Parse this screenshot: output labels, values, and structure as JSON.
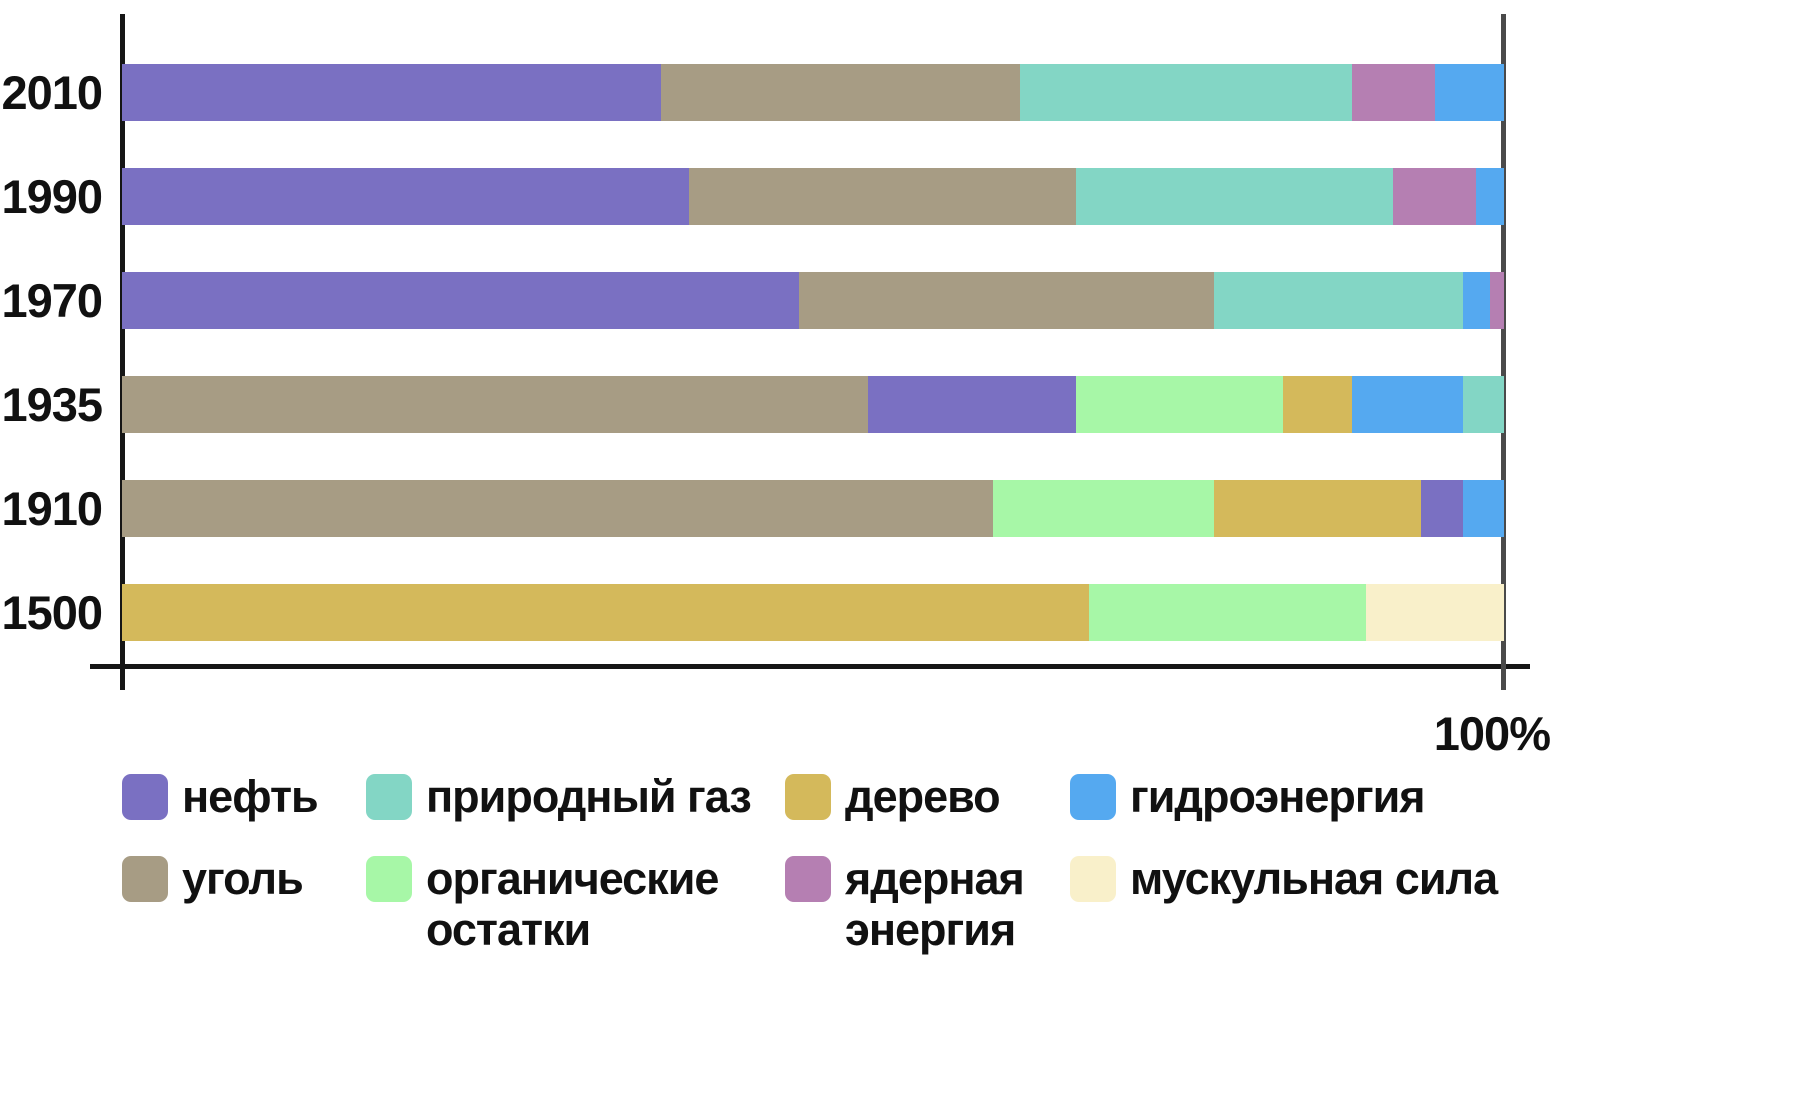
{
  "axis": {
    "max_label": "100%"
  },
  "colors": {
    "oil": "#7a70c2",
    "coal": "#a79c84",
    "gas": "#83d6c5",
    "organic": "#a7f7a7",
    "wood": "#d4b95b",
    "nuclear": "#b57fb2",
    "hydro": "#55a9f0",
    "muscle": "#f9f0ca"
  },
  "chart_data": {
    "type": "bar",
    "orientation": "horizontal",
    "stacked": true,
    "unit": "%",
    "xlim": [
      0,
      100
    ],
    "categories": [
      "2010",
      "1990",
      "1970",
      "1935",
      "1910",
      "1500"
    ],
    "rows": [
      {
        "year": "2010",
        "segments": [
          {
            "name": "нефть",
            "key": "oil",
            "value": 39
          },
          {
            "name": "уголь",
            "key": "coal",
            "value": 26
          },
          {
            "name": "природный газ",
            "key": "gas",
            "value": 24
          },
          {
            "name": "ядерная энергия",
            "key": "nuclear",
            "value": 6
          },
          {
            "name": "гидроэнергия",
            "key": "hydro",
            "value": 5
          }
        ]
      },
      {
        "year": "1990",
        "segments": [
          {
            "name": "нефть",
            "key": "oil",
            "value": 41
          },
          {
            "name": "уголь",
            "key": "coal",
            "value": 28
          },
          {
            "name": "природный газ",
            "key": "gas",
            "value": 23
          },
          {
            "name": "ядерная энергия",
            "key": "nuclear",
            "value": 6
          },
          {
            "name": "гидроэнергия",
            "key": "hydro",
            "value": 2
          }
        ]
      },
      {
        "year": "1970",
        "segments": [
          {
            "name": "нефть",
            "key": "oil",
            "value": 49
          },
          {
            "name": "уголь",
            "key": "coal",
            "value": 30
          },
          {
            "name": "природный газ",
            "key": "gas",
            "value": 18
          },
          {
            "name": "гидроэнергия",
            "key": "hydro",
            "value": 2
          },
          {
            "name": "ядерная энергия",
            "key": "nuclear",
            "value": 1
          }
        ]
      },
      {
        "year": "1935",
        "segments": [
          {
            "name": "уголь",
            "key": "coal",
            "value": 54
          },
          {
            "name": "нефть",
            "key": "oil",
            "value": 15
          },
          {
            "name": "органические остатки",
            "key": "organic",
            "value": 15
          },
          {
            "name": "дерево",
            "key": "wood",
            "value": 5
          },
          {
            "name": "гидроэнергия",
            "key": "hydro",
            "value": 8
          },
          {
            "name": "природный газ",
            "key": "gas",
            "value": 3
          }
        ]
      },
      {
        "year": "1910",
        "segments": [
          {
            "name": "уголь",
            "key": "coal",
            "value": 63
          },
          {
            "name": "органические остатки",
            "key": "organic",
            "value": 16
          },
          {
            "name": "дерево",
            "key": "wood",
            "value": 15
          },
          {
            "name": "нефть",
            "key": "oil",
            "value": 3
          },
          {
            "name": "гидроэнергия",
            "key": "hydro",
            "value": 3
          }
        ]
      },
      {
        "year": "1500",
        "segments": [
          {
            "name": "дерево",
            "key": "wood",
            "value": 70
          },
          {
            "name": "органические остатки",
            "key": "organic",
            "value": 20
          },
          {
            "name": "мускульная сила",
            "key": "muscle",
            "value": 10
          }
        ]
      }
    ]
  },
  "legend": {
    "items": [
      {
        "label": "нефть",
        "key": "oil"
      },
      {
        "label": "природный газ",
        "key": "gas"
      },
      {
        "label": "дерево",
        "key": "wood"
      },
      {
        "label": "гидроэнергия",
        "key": "hydro"
      },
      {
        "label": "уголь",
        "key": "coal"
      },
      {
        "label": "органические остатки",
        "key": "organic"
      },
      {
        "label": "ядерная энергия",
        "key": "nuclear"
      },
      {
        "label": "мускульная сила",
        "key": "muscle"
      }
    ]
  }
}
